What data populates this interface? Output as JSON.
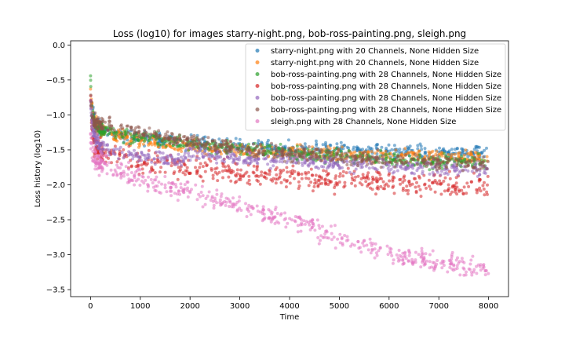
{
  "chart_data": {
    "type": "scatter",
    "title": "Loss (log10) for images starry-night.png, bob-ross-painting.png, sleigh.png",
    "xlabel": "Time",
    "ylabel": "Loss history (log10)",
    "xlim": [
      -400,
      8400
    ],
    "ylim": [
      -3.6,
      0.06
    ],
    "xticks": [
      0,
      1000,
      2000,
      3000,
      4000,
      5000,
      6000,
      7000,
      8000
    ],
    "yticks": [
      0.0,
      -0.5,
      -1.0,
      -1.5,
      -2.0,
      -2.5,
      -3.0,
      -3.5
    ],
    "xtick_labels": [
      "0",
      "1000",
      "2000",
      "3000",
      "4000",
      "5000",
      "6000",
      "7000",
      "8000"
    ],
    "ytick_labels": [
      "0.0",
      "−0.5",
      "−1.0",
      "−1.5",
      "−2.0",
      "−2.5",
      "−3.0",
      "−3.5"
    ],
    "legend_position": "top-right",
    "grid": false,
    "series": [
      {
        "name": "starry-night.png with 20 Channels, None Hidden Size",
        "color": "#1f77b4",
        "x": [
          0,
          30,
          80,
          200,
          500,
          1000,
          2000,
          3000,
          4000,
          5000,
          6000,
          7000,
          8000
        ],
        "y": [
          -0.75,
          -0.9,
          -1.1,
          -1.2,
          -1.28,
          -1.33,
          -1.4,
          -1.45,
          -1.48,
          -1.5,
          -1.52,
          -1.54,
          -1.55
        ],
        "spread": 0.05
      },
      {
        "name": "starry-night.png with 20 Channels, None Hidden Size",
        "color": "#ff7f0e",
        "x": [
          0,
          30,
          80,
          200,
          500,
          1000,
          2000,
          3000,
          4000,
          5000,
          6000,
          7000,
          8000
        ],
        "y": [
          -0.65,
          -0.95,
          -1.12,
          -1.22,
          -1.3,
          -1.36,
          -1.46,
          -1.52,
          -1.55,
          -1.57,
          -1.59,
          -1.6,
          -1.61
        ],
        "spread": 0.05
      },
      {
        "name": "bob-ross-painting.png with 28 Channels, None Hidden Size",
        "color": "#2ca02c",
        "x": [
          0,
          30,
          80,
          200,
          500,
          1000,
          2000,
          3000,
          4000,
          5000,
          6000,
          7000,
          8000
        ],
        "y": [
          -0.5,
          -0.95,
          -1.1,
          -1.2,
          -1.27,
          -1.33,
          -1.42,
          -1.5,
          -1.55,
          -1.6,
          -1.63,
          -1.66,
          -1.68
        ],
        "spread": 0.05
      },
      {
        "name": "bob-ross-painting.png with 28 Channels, None Hidden Size",
        "color": "#d62728",
        "x": [
          0,
          30,
          80,
          200,
          500,
          1000,
          2000,
          3000,
          4000,
          5000,
          6000,
          7000,
          8000
        ],
        "y": [
          -0.7,
          -1.25,
          -1.45,
          -1.52,
          -1.6,
          -1.66,
          -1.76,
          -1.83,
          -1.88,
          -1.93,
          -1.97,
          -2.0,
          -2.03
        ],
        "spread": 0.08
      },
      {
        "name": "bob-ross-painting.png with 28 Channels, None Hidden Size",
        "color": "#9467bd",
        "x": [
          0,
          30,
          80,
          200,
          500,
          1000,
          1850,
          1900,
          2500,
          3000,
          4000,
          5000,
          6000,
          7000,
          8000
        ],
        "y": [
          -0.8,
          -1.15,
          -1.3,
          -1.45,
          -1.55,
          -1.6,
          -1.65,
          -1.55,
          -1.58,
          -1.62,
          -1.66,
          -1.7,
          -1.73,
          -1.76,
          -1.78
        ],
        "spread": 0.05
      },
      {
        "name": "bob-ross-painting.png with 28 Channels, None Hidden Size",
        "color": "#8c564b",
        "x": [
          0,
          30,
          80,
          200,
          500,
          1000,
          2000,
          3000,
          4000,
          5000,
          6000,
          7000,
          8000
        ],
        "y": [
          -0.75,
          -1.05,
          -1.1,
          -1.13,
          -1.18,
          -1.25,
          -1.38,
          -1.48,
          -1.55,
          -1.6,
          -1.64,
          -1.68,
          -1.7
        ],
        "spread": 0.05
      },
      {
        "name": "sleigh.png with 28 Channels, None Hidden Size",
        "color": "#e377c2",
        "x": [
          0,
          30,
          80,
          200,
          500,
          1000,
          1500,
          2000,
          2500,
          3000,
          3500,
          4000,
          5000,
          6000,
          7000,
          8000
        ],
        "y": [
          -1.35,
          -1.55,
          -1.62,
          -1.68,
          -1.78,
          -1.92,
          -2.03,
          -2.12,
          -2.2,
          -2.3,
          -2.4,
          -2.5,
          -2.75,
          -2.98,
          -3.13,
          -3.22
        ],
        "spread": 0.07
      }
    ]
  }
}
